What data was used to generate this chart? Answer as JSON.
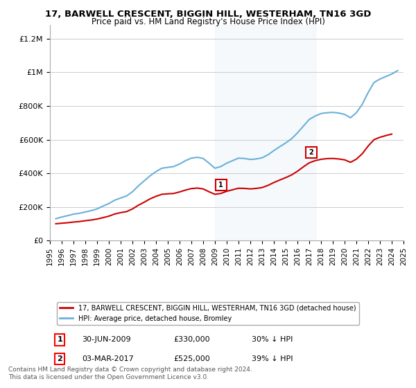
{
  "title": "17, BARWELL CRESCENT, BIGGIN HILL, WESTERHAM, TN16 3GD",
  "subtitle": "Price paid vs. HM Land Registry's House Price Index (HPI)",
  "ylabel_ticks": [
    "£0",
    "£200K",
    "£400K",
    "£600K",
    "£800K",
    "£1M",
    "£1.2M"
  ],
  "ytick_vals": [
    0,
    200000,
    400000,
    600000,
    800000,
    1000000,
    1200000
  ],
  "ylim": [
    0,
    1280000
  ],
  "xlim_year": [
    1995,
    2025
  ],
  "hpi_color": "#6ab0d8",
  "price_color": "#cc0000",
  "shaded_color": "#dbeaf7",
  "marker_color_1": "#cc0000",
  "marker_color_2": "#cc0000",
  "legend_box_color": "#ffffff",
  "annotation1_label": "1",
  "annotation1_date": "30-JUN-2009",
  "annotation1_price": "£330,000",
  "annotation1_hpi": "30% ↓ HPI",
  "annotation2_label": "2",
  "annotation2_date": "03-MAR-2017",
  "annotation2_price": "£525,000",
  "annotation2_hpi": "39% ↓ HPI",
  "legend_line1": "17, BARWELL CRESCENT, BIGGIN HILL, WESTERHAM, TN16 3GD (detached house)",
  "legend_line2": "HPI: Average price, detached house, Bromley",
  "footnote": "Contains HM Land Registry data © Crown copyright and database right 2024.\nThis data is licensed under the Open Government Licence v3.0.",
  "hpi_data": {
    "years": [
      1995.5,
      1996.0,
      1996.5,
      1997.0,
      1997.5,
      1998.0,
      1998.5,
      1999.0,
      1999.5,
      2000.0,
      2000.5,
      2001.0,
      2001.5,
      2002.0,
      2002.5,
      2003.0,
      2003.5,
      2004.0,
      2004.5,
      2005.0,
      2005.5,
      2006.0,
      2006.5,
      2007.0,
      2007.5,
      2008.0,
      2008.5,
      2009.0,
      2009.5,
      2010.0,
      2010.5,
      2011.0,
      2011.5,
      2012.0,
      2012.5,
      2013.0,
      2013.5,
      2014.0,
      2014.5,
      2015.0,
      2015.5,
      2016.0,
      2016.5,
      2017.0,
      2017.5,
      2018.0,
      2018.5,
      2019.0,
      2019.5,
      2020.0,
      2020.5,
      2021.0,
      2021.5,
      2022.0,
      2022.5,
      2023.0,
      2023.5,
      2024.0,
      2024.5
    ],
    "values": [
      130000,
      140000,
      148000,
      157000,
      162000,
      170000,
      178000,
      188000,
      205000,
      220000,
      240000,
      253000,
      265000,
      290000,
      325000,
      355000,
      385000,
      410000,
      430000,
      435000,
      440000,
      455000,
      475000,
      490000,
      495000,
      488000,
      460000,
      430000,
      440000,
      460000,
      475000,
      490000,
      488000,
      482000,
      485000,
      492000,
      510000,
      535000,
      558000,
      580000,
      605000,
      640000,
      680000,
      720000,
      740000,
      755000,
      760000,
      762000,
      758000,
      750000,
      730000,
      760000,
      810000,
      880000,
      940000,
      960000,
      975000,
      990000,
      1010000
    ]
  },
  "price_data": {
    "years": [
      1995.5,
      1996.0,
      1996.5,
      1997.0,
      1997.5,
      1998.0,
      1998.5,
      1999.0,
      1999.5,
      2000.0,
      2000.5,
      2001.0,
      2001.5,
      2002.0,
      2002.5,
      2003.0,
      2003.5,
      2004.0,
      2004.5,
      2005.0,
      2005.5,
      2006.0,
      2006.5,
      2007.0,
      2007.5,
      2008.0,
      2008.5,
      2009.0,
      2009.5,
      2010.0,
      2010.5,
      2011.0,
      2011.5,
      2012.0,
      2012.5,
      2013.0,
      2013.5,
      2014.0,
      2014.5,
      2015.0,
      2015.5,
      2016.0,
      2016.5,
      2017.0,
      2017.5,
      2018.0,
      2018.5,
      2019.0,
      2019.5,
      2020.0,
      2020.5,
      2021.0,
      2021.5,
      2022.0,
      2022.5,
      2023.0,
      2023.5,
      2024.0
    ],
    "values": [
      100000,
      103000,
      106000,
      110000,
      113000,
      118000,
      122000,
      128000,
      136000,
      145000,
      158000,
      166000,
      172000,
      188000,
      210000,
      228000,
      248000,
      263000,
      275000,
      278000,
      280000,
      289000,
      300000,
      309000,
      312000,
      307000,
      290000,
      275000,
      280000,
      293000,
      302000,
      311000,
      310000,
      307000,
      310000,
      315000,
      328000,
      345000,
      360000,
      374000,
      390000,
      412000,
      438000,
      462000,
      475000,
      483000,
      487000,
      488000,
      485000,
      480000,
      465000,
      484000,
      516000,
      562000,
      600000,
      614000,
      624000,
      633000
    ]
  },
  "sale1_year": 2009.5,
  "sale1_price": 330000,
  "sale2_year": 2017.17,
  "sale2_price": 525000,
  "shaded_start": 2009.0,
  "shaded_end": 2017.5,
  "xtick_years": [
    1995,
    1996,
    1997,
    1998,
    1999,
    2000,
    2001,
    2002,
    2003,
    2004,
    2005,
    2006,
    2007,
    2008,
    2009,
    2010,
    2011,
    2012,
    2013,
    2014,
    2015,
    2016,
    2017,
    2018,
    2019,
    2020,
    2021,
    2022,
    2023,
    2024,
    2025
  ]
}
